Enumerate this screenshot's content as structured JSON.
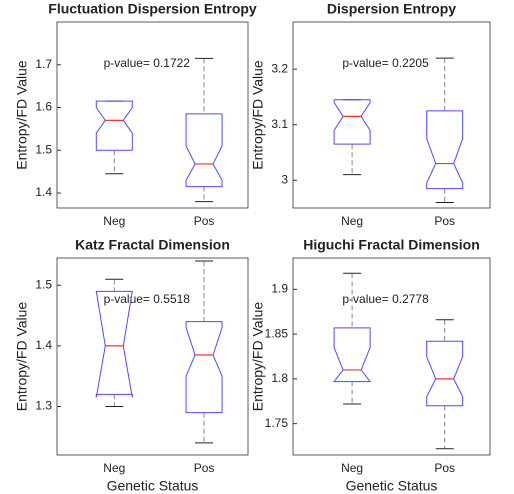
{
  "chart_data": [
    {
      "type": "box",
      "title": "Fluctuation Dispersion Entropy",
      "annotation": "p-value= 0.1722",
      "ylabel": "Entropy/FD Value",
      "categories": [
        "Neg",
        "Pos"
      ],
      "box_color": "#4b4bff",
      "median_color": "#ff3030",
      "whisker_color": "#888888",
      "boxes": [
        {
          "whislo": 1.445,
          "q1": 1.5,
          "notch_lo": 1.54,
          "median": 1.57,
          "notch_hi": 1.6,
          "q3": 1.615,
          "whishi": 1.615
        },
        {
          "whislo": 1.38,
          "q1": 1.415,
          "notch_lo": 1.43,
          "median": 1.468,
          "notch_hi": 1.51,
          "q3": 1.585,
          "whishi": 1.715
        }
      ],
      "ylim": [
        1.365,
        1.8
      ],
      "yticks": [
        1.4,
        1.5,
        1.6,
        1.7
      ]
    },
    {
      "type": "box",
      "title": "Dispersion Entropy",
      "annotation": "p-value= 0.2205",
      "ylabel": "Entropy/FD Value",
      "categories": [
        "Neg",
        "Pos"
      ],
      "box_color": "#4b4bff",
      "median_color": "#ff3030",
      "whisker_color": "#888888",
      "boxes": [
        {
          "whislo": 3.01,
          "q1": 3.065,
          "notch_lo": 3.09,
          "median": 3.115,
          "notch_hi": 3.14,
          "q3": 3.145,
          "whishi": 3.145
        },
        {
          "whislo": 2.96,
          "q1": 2.985,
          "notch_lo": 2.995,
          "median": 3.03,
          "notch_hi": 3.075,
          "q3": 3.125,
          "whishi": 3.22
        }
      ],
      "ylim": [
        2.95,
        3.285
      ],
      "yticks": [
        3,
        3.1,
        3.2
      ]
    },
    {
      "type": "box",
      "title": "Katz Fractal Dimension",
      "annotation": "p-value= 0.5518",
      "ylabel": "Entropy/FD Value",
      "xlabel": "Genetic Status",
      "categories": [
        "Neg",
        "Pos"
      ],
      "box_color": "#4b4bff",
      "median_color": "#ff3030",
      "whisker_color": "#888888",
      "boxes": [
        {
          "whislo": 1.3,
          "q1": 1.32,
          "notch_lo": 1.315,
          "median": 1.4,
          "notch_hi": 1.49,
          "q3": 1.49,
          "whishi": 1.51
        },
        {
          "whislo": 1.24,
          "q1": 1.29,
          "notch_lo": 1.35,
          "median": 1.385,
          "notch_hi": 1.43,
          "q3": 1.44,
          "whishi": 1.54
        }
      ],
      "ylim": [
        1.22,
        1.545
      ],
      "yticks": [
        1.3,
        1.4,
        1.5
      ]
    },
    {
      "type": "box",
      "title": "Higuchi Fractal Dimension",
      "annotation": "p-value= 0.2778",
      "ylabel": "Entropy/FD Value",
      "xlabel": "Genetic Status",
      "categories": [
        "Neg",
        "Pos"
      ],
      "box_color": "#4b4bff",
      "median_color": "#ff3030",
      "whisker_color": "#888888",
      "boxes": [
        {
          "whislo": 1.772,
          "q1": 1.797,
          "notch_lo": 1.797,
          "median": 1.81,
          "notch_hi": 1.835,
          "q3": 1.857,
          "whishi": 1.918
        },
        {
          "whislo": 1.722,
          "q1": 1.77,
          "notch_lo": 1.78,
          "median": 1.8,
          "notch_hi": 1.825,
          "q3": 1.842,
          "whishi": 1.866
        }
      ],
      "ylim": [
        1.715,
        1.935
      ],
      "yticks": [
        1.75,
        1.8,
        1.85,
        1.9
      ]
    }
  ]
}
